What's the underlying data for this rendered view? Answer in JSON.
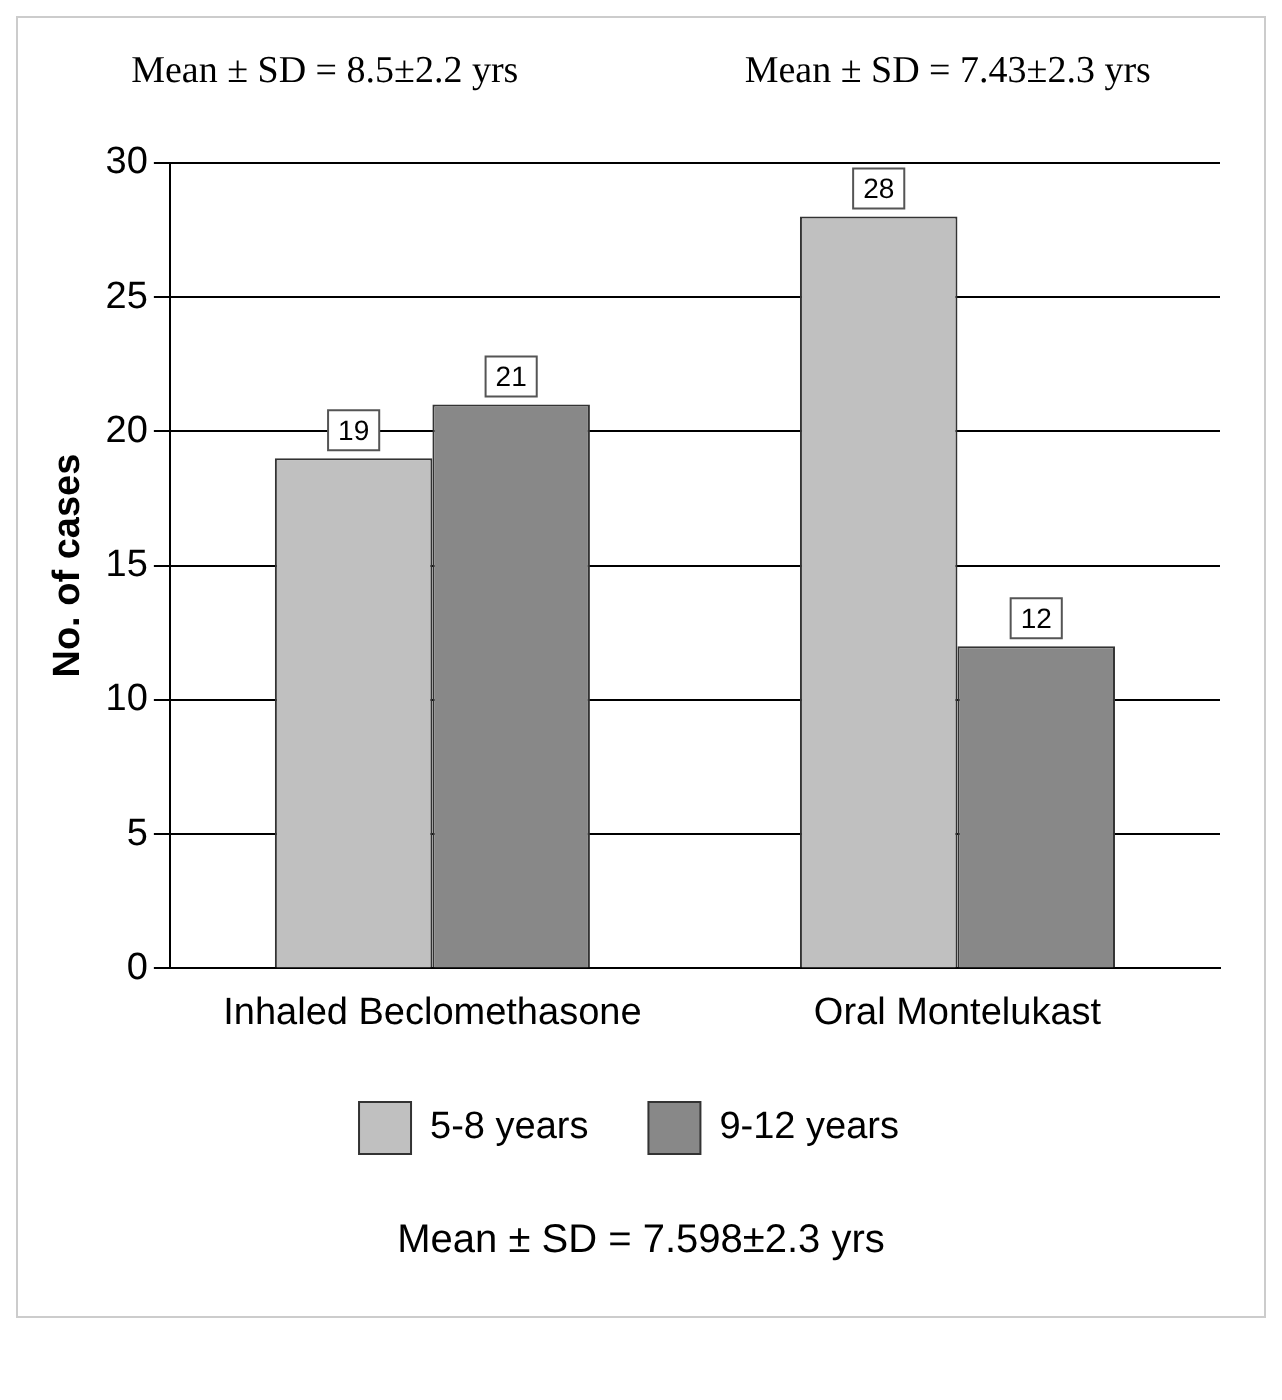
{
  "chart_data": {
    "type": "bar",
    "ylabel": "No. of cases",
    "categories": [
      "Inhaled Beclomethasone",
      "Oral Montelukast"
    ],
    "series": [
      {
        "name": "5-8 years",
        "color": "#c0c0c0",
        "values": [
          19,
          28
        ]
      },
      {
        "name": "9-12 years",
        "color": "#888888",
        "values": [
          21,
          12
        ]
      }
    ],
    "ylim": [
      0,
      30
    ],
    "yticks": [
      0,
      5,
      10,
      15,
      20,
      25,
      30
    ],
    "grid": "y",
    "legend": "bottom",
    "data_labels": true,
    "annotations": [
      "Mean ± SD = 8.5±2.2 yrs",
      "Mean ± SD = 7.43±2.3 yrs",
      "Mean ± SD = 7.598±2.3 yrs"
    ]
  }
}
